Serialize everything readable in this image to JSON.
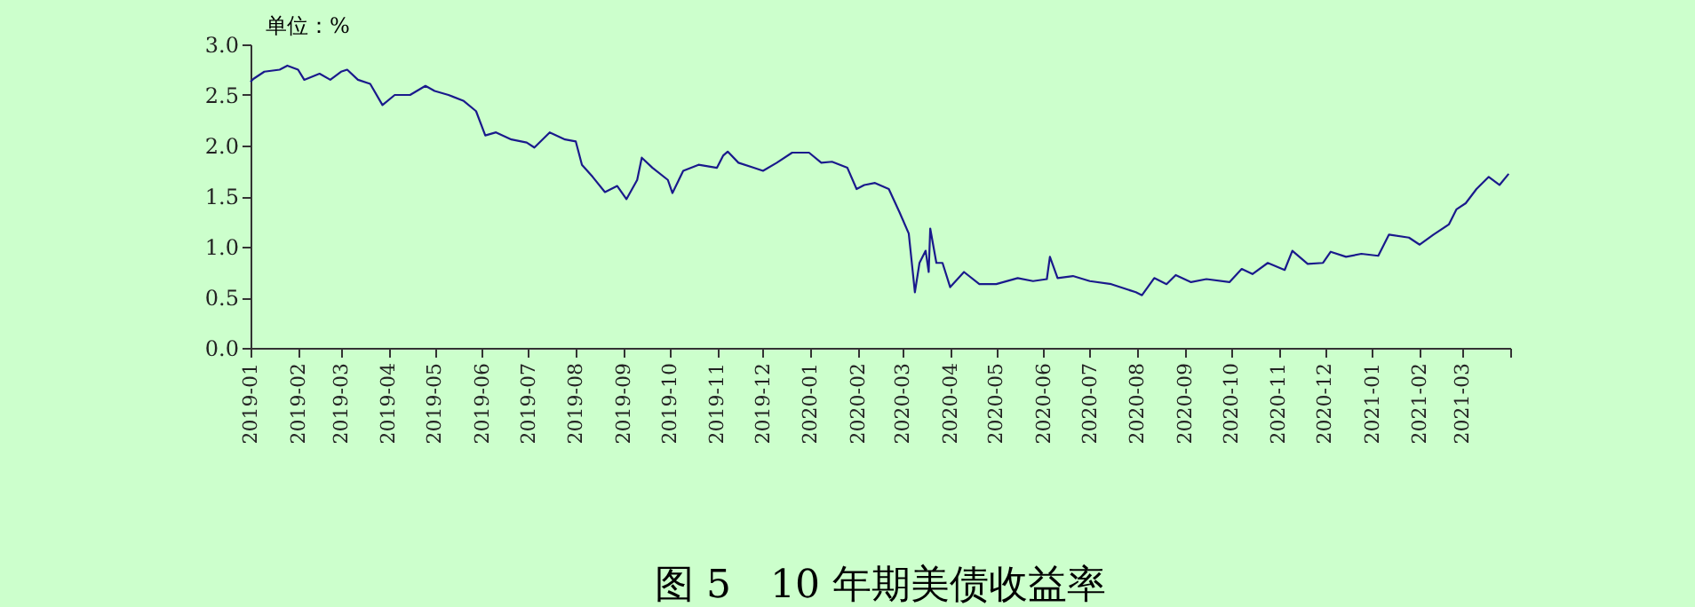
{
  "chart_data": {
    "type": "line",
    "title": "图 5　10 年期美债收益率",
    "ylabel": "单位：%",
    "x": [
      "2019-01-01",
      "2019-01-03",
      "2019-01-10",
      "2019-01-20",
      "2019-01-25",
      "2019-02-01",
      "2019-02-05",
      "2019-02-15",
      "2019-02-22",
      "2019-03-01",
      "2019-03-05",
      "2019-03-12",
      "2019-03-20",
      "2019-03-28",
      "2019-04-05",
      "2019-04-15",
      "2019-04-25",
      "2019-05-01",
      "2019-05-10",
      "2019-05-20",
      "2019-05-28",
      "2019-06-03",
      "2019-06-10",
      "2019-06-20",
      "2019-06-30",
      "2019-07-05",
      "2019-07-15",
      "2019-07-25",
      "2019-08-01",
      "2019-08-05",
      "2019-08-12",
      "2019-08-20",
      "2019-08-28",
      "2019-09-03",
      "2019-09-10",
      "2019-09-13",
      "2019-09-20",
      "2019-09-30",
      "2019-10-03",
      "2019-10-10",
      "2019-10-20",
      "2019-11-01",
      "2019-11-05",
      "2019-11-08",
      "2019-11-15",
      "2019-11-25",
      "2019-12-01",
      "2019-12-10",
      "2019-12-20",
      "2019-12-31",
      "2020-01-08",
      "2020-01-15",
      "2020-01-25",
      "2020-01-31",
      "2020-02-05",
      "2020-02-12",
      "2020-02-21",
      "2020-02-28",
      "2020-03-05",
      "2020-03-09",
      "2020-03-12",
      "2020-03-16",
      "2020-03-18",
      "2020-03-19",
      "2020-03-23",
      "2020-03-27",
      "2020-04-01",
      "2020-04-10",
      "2020-04-20",
      "2020-05-01",
      "2020-05-15",
      "2020-05-25",
      "2020-06-03",
      "2020-06-05",
      "2020-06-10",
      "2020-06-20",
      "2020-07-01",
      "2020-07-15",
      "2020-07-31",
      "2020-08-04",
      "2020-08-12",
      "2020-08-20",
      "2020-08-26",
      "2020-09-05",
      "2020-09-15",
      "2020-09-30",
      "2020-10-08",
      "2020-10-15",
      "2020-10-25",
      "2020-11-05",
      "2020-11-10",
      "2020-11-20",
      "2020-11-30",
      "2020-12-05",
      "2020-12-15",
      "2020-12-25",
      "2021-01-05",
      "2021-01-12",
      "2021-01-25",
      "2021-02-01",
      "2021-02-10",
      "2021-02-20",
      "2021-02-25",
      "2021-03-03",
      "2021-03-10",
      "2021-03-18",
      "2021-03-25",
      "2021-03-31"
    ],
    "series": [
      {
        "color": "#1a1a8c",
        "values": [
          2.63,
          2.66,
          2.73,
          2.75,
          2.79,
          2.75,
          2.65,
          2.71,
          2.65,
          2.73,
          2.75,
          2.65,
          2.61,
          2.4,
          2.5,
          2.5,
          2.59,
          2.54,
          2.5,
          2.44,
          2.34,
          2.1,
          2.13,
          2.06,
          2.03,
          1.98,
          2.13,
          2.06,
          2.04,
          1.81,
          1.69,
          1.54,
          1.6,
          1.47,
          1.66,
          1.88,
          1.78,
          1.66,
          1.53,
          1.75,
          1.81,
          1.78,
          1.9,
          1.94,
          1.83,
          1.78,
          1.75,
          1.83,
          1.93,
          1.93,
          1.83,
          1.84,
          1.78,
          1.57,
          1.61,
          1.63,
          1.57,
          1.34,
          1.13,
          0.55,
          0.84,
          0.96,
          0.75,
          1.18,
          0.84,
          0.84,
          0.6,
          0.75,
          0.63,
          0.63,
          0.69,
          0.66,
          0.68,
          0.9,
          0.69,
          0.71,
          0.66,
          0.63,
          0.55,
          0.52,
          0.69,
          0.63,
          0.72,
          0.65,
          0.68,
          0.65,
          0.78,
          0.73,
          0.84,
          0.77,
          0.96,
          0.83,
          0.84,
          0.95,
          0.9,
          0.93,
          0.91,
          1.12,
          1.09,
          1.02,
          1.12,
          1.22,
          1.37,
          1.43,
          1.57,
          1.69,
          1.61,
          1.72
        ]
      }
    ],
    "xlim": [
      "2019-01",
      "2021-04"
    ],
    "xticks": [
      "2019-01",
      "2019-02",
      "2019-03",
      "2019-04",
      "2019-05",
      "2019-06",
      "2019-07",
      "2019-08",
      "2019-09",
      "2019-10",
      "2019-11",
      "2019-12",
      "2020-01",
      "2020-02",
      "2020-03",
      "2020-04",
      "2020-05",
      "2020-06",
      "2020-07",
      "2020-08",
      "2020-09",
      "2020-10",
      "2020-11",
      "2020-12",
      "2021-01",
      "2021-02",
      "2021-03",
      {
        "value": "2021-04",
        "label": null
      }
    ],
    "ylim": [
      0,
      3
    ],
    "yticks": [
      {
        "value": 0,
        "label": "0.0"
      },
      {
        "value": 0.5,
        "label": "0.5"
      },
      {
        "value": 1,
        "label": "1.0"
      },
      {
        "value": 1.5,
        "label": "1.5"
      },
      {
        "value": 2,
        "label": "2.0"
      },
      {
        "value": 2.5,
        "label": "2.5"
      },
      {
        "value": 3,
        "label": "3.0"
      }
    ],
    "grid": false
  }
}
